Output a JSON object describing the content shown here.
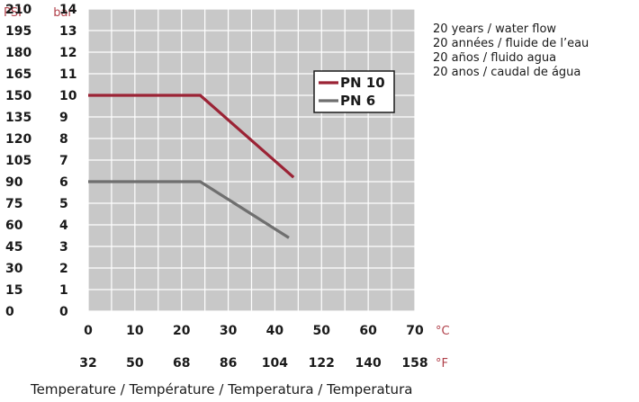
{
  "chart_data": {
    "type": "line",
    "xlabel": "Temperature  / Température / Temperatura / Temperatura",
    "x_unit": "°C",
    "x2_unit": "°F",
    "y_unit": "bar",
    "y2_unit": "PSI",
    "xlim": [
      0,
      70
    ],
    "ylim": [
      0,
      14
    ],
    "x_ticks": [
      "0",
      "10",
      "20",
      "30",
      "40",
      "50",
      "60",
      "70"
    ],
    "x2_ticks": [
      "32",
      "50",
      "68",
      "86",
      "104",
      "122",
      "140",
      "158"
    ],
    "y_ticks": [
      "0",
      "1",
      "2",
      "3",
      "4",
      "5",
      "6",
      "7",
      "8",
      "9",
      "10",
      "11",
      "12",
      "13",
      "14"
    ],
    "y2_ticks": [
      "0",
      "15",
      "30",
      "45",
      "60",
      "75",
      "90",
      "105",
      "120",
      "135",
      "150",
      "165",
      "180",
      "195",
      "210"
    ],
    "grid": true,
    "legend": "top-right",
    "series": [
      {
        "name": "PN 10",
        "color": "#9b2335",
        "x": [
          0,
          24,
          44
        ],
        "y": [
          10,
          10,
          6.2
        ]
      },
      {
        "name": "PN 6",
        "color": "#6f6f6f",
        "x": [
          0,
          24,
          43
        ],
        "y": [
          6,
          6,
          3.4
        ]
      }
    ],
    "notes": [
      "20 years / water flow",
      "20 années / fluide de l’eau",
      "20 años / fluido agua",
      "20 anos / caudal de água"
    ]
  },
  "colors": {
    "plot_background": "#c8c8c8",
    "grid": "#ffffff",
    "unit_labels": "#b0404a"
  }
}
